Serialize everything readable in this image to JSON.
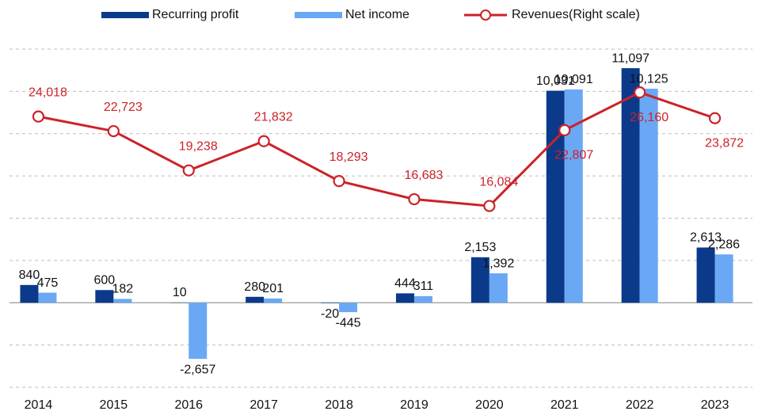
{
  "chart_data": {
    "type": "bar_line",
    "categories": [
      "2014",
      "2015",
      "2016",
      "2017",
      "2018",
      "2019",
      "2020",
      "2021",
      "2022",
      "2023"
    ],
    "series": [
      {
        "name": "Recurring profit",
        "color": "#0b3a8a",
        "values": [
          840,
          600,
          10,
          280,
          -20,
          444,
          2153,
          10031,
          11097,
          2613
        ],
        "value_labels": [
          "840",
          "600",
          "10",
          "280",
          "-20",
          "444",
          "2,153",
          "10,031",
          "11,097",
          "2,613"
        ]
      },
      {
        "name": "Net income",
        "color": "#6aa8f5",
        "values": [
          475,
          182,
          -2657,
          201,
          -445,
          311,
          1392,
          10091,
          10125,
          2286
        ],
        "value_labels": [
          "475",
          "182",
          "-2,657",
          "201",
          "-445",
          "311",
          "1,392",
          "10,091",
          "10,125",
          "2,286"
        ]
      },
      {
        "name": "Revenues(Right scale)",
        "color": "#cc2229",
        "axis": "y2",
        "values": [
          24018,
          22723,
          19238,
          21832,
          18293,
          16683,
          16084,
          22807,
          26160,
          23872
        ],
        "value_labels": [
          "24,018",
          "22,723",
          "19,238",
          "21,832",
          "18,293",
          "16,683",
          "16,084",
          "22,807",
          "26,160",
          "23,872"
        ]
      }
    ],
    "ylim": [
      -4000,
      12000
    ],
    "yticks": [
      -4000,
      -2000,
      0,
      2000,
      4000,
      6000,
      8000,
      10000,
      12000
    ],
    "y2lim": [
      0,
      30000
    ],
    "grid": true
  }
}
